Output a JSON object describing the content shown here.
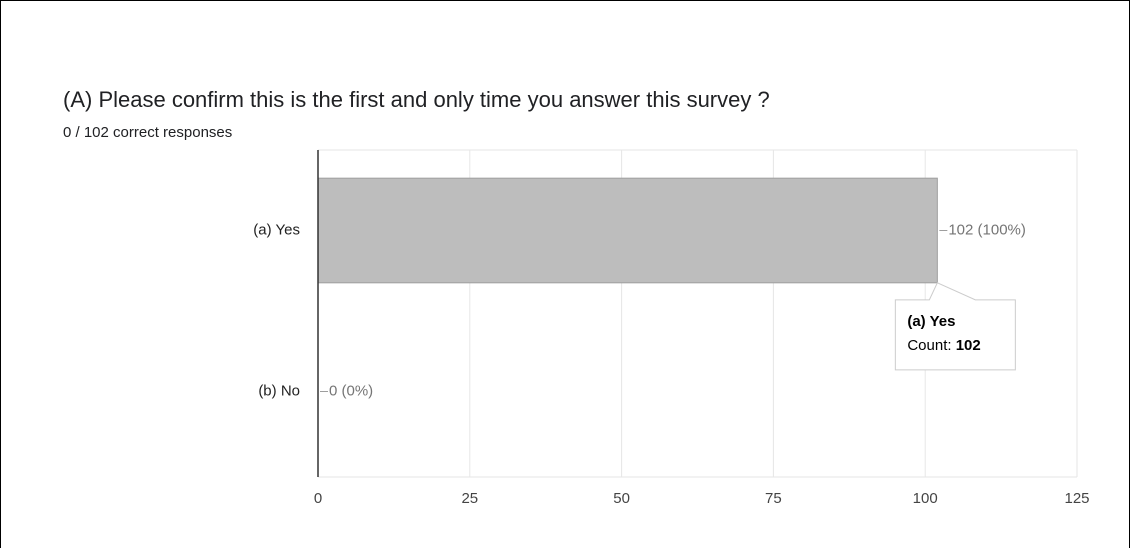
{
  "chart_data": {
    "type": "bar",
    "orientation": "horizontal",
    "title": "(A) Please confirm this is the first and only time you answer this survey ?",
    "subtitle": "0 / 102 correct responses",
    "categories": [
      "(a) Yes",
      "(b) No"
    ],
    "values": [
      102,
      0
    ],
    "value_labels": [
      "102 (100%)",
      "0 (0%)"
    ],
    "color": "#bdbdbd",
    "xlim": [
      0,
      125
    ],
    "xticks": [
      0,
      25,
      50,
      75,
      100,
      125
    ],
    "grid": true,
    "tooltip": {
      "label": "Count:"
    }
  }
}
